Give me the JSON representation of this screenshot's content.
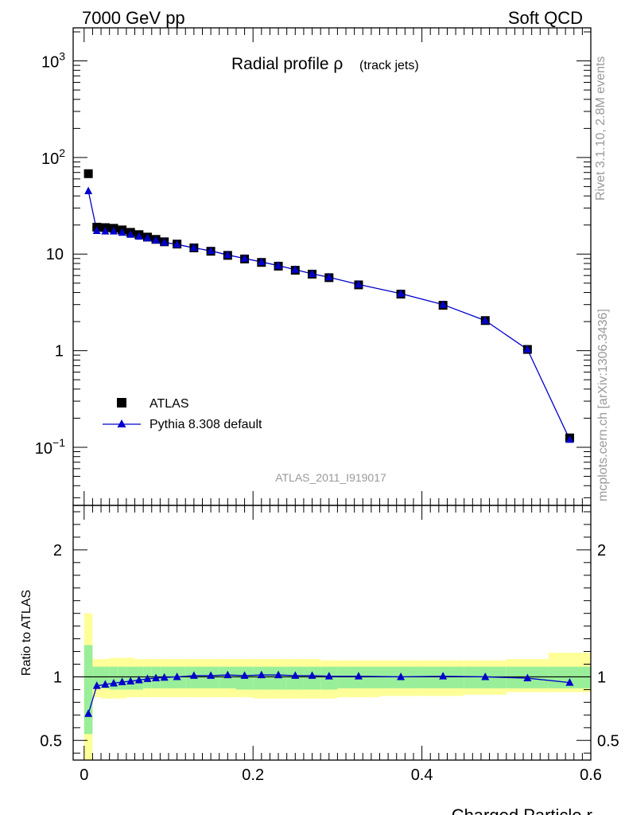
{
  "header": {
    "left": "7000 GeV pp",
    "right": "Soft QCD"
  },
  "side_text": {
    "rivet": "Rivet 3.1.10,  2.8M events",
    "source": "mcplots.cern.ch [arXiv:1306.3436]"
  },
  "plot": {
    "title": "Radial profile ρ",
    "title_small": "(track jets)",
    "analysis_id": "ATLAS_2011_I919017"
  },
  "legend": {
    "data_label": "ATLAS",
    "mc_label": "Pythia 8.308 default"
  },
  "colors": {
    "data": "#000000",
    "mc": "#0000cc",
    "band_inner": "#99ee99",
    "band_outer": "#ffff99",
    "side_text": "#999999"
  },
  "chart_data": [
    {
      "type": "scatter",
      "name": "main",
      "yscale": "log",
      "xlim": [
        -0.013,
        0.6
      ],
      "ylim": [
        0.025,
        2200
      ],
      "y_ticks": [
        {
          "value": 1000,
          "base": "10",
          "exp": "3"
        },
        {
          "value": 100,
          "base": "10",
          "exp": "2"
        },
        {
          "value": 10,
          "label": "10"
        },
        {
          "value": 1,
          "label": "1"
        },
        {
          "value": 0.1,
          "base": "10",
          "exp": "−1"
        }
      ],
      "series": [
        {
          "name": "ATLAS",
          "marker": "square",
          "x": [
            0.005,
            0.015,
            0.025,
            0.035,
            0.045,
            0.055,
            0.065,
            0.075,
            0.085,
            0.095,
            0.11,
            0.13,
            0.15,
            0.17,
            0.19,
            0.21,
            0.23,
            0.25,
            0.27,
            0.29,
            0.325,
            0.375,
            0.425,
            0.475,
            0.525,
            0.575
          ],
          "y": [
            68,
            19,
            18.8,
            18.5,
            17.8,
            16.8,
            15.9,
            15.0,
            14.2,
            13.4,
            12.7,
            11.6,
            10.7,
            9.7,
            8.9,
            8.2,
            7.5,
            6.8,
            6.2,
            5.7,
            4.8,
            3.85,
            2.95,
            2.05,
            1.03,
            0.125
          ]
        },
        {
          "name": "Pythia 8.308 default",
          "marker": "triangle",
          "x": [
            0.005,
            0.015,
            0.025,
            0.035,
            0.045,
            0.055,
            0.065,
            0.075,
            0.085,
            0.095,
            0.11,
            0.13,
            0.15,
            0.17,
            0.19,
            0.21,
            0.23,
            0.25,
            0.27,
            0.29,
            0.325,
            0.375,
            0.425,
            0.475,
            0.525,
            0.575
          ],
          "y": [
            45,
            17.4,
            17.2,
            17.2,
            16.7,
            15.9,
            15.2,
            14.6,
            13.9,
            13.2,
            12.6,
            11.6,
            10.8,
            9.8,
            9.0,
            8.3,
            7.6,
            6.9,
            6.25,
            5.75,
            4.85,
            3.9,
            3.0,
            2.05,
            1.03,
            0.12
          ]
        }
      ]
    },
    {
      "type": "scatter",
      "name": "ratio",
      "ylabel": "Ratio to ATLAS",
      "xlabel": "Charged Particle r",
      "xlim": [
        -0.013,
        0.6
      ],
      "ylim": [
        0.345,
        2.35
      ],
      "y_ticks": [
        {
          "value": 0.5,
          "label": "0.5"
        },
        {
          "value": 1,
          "label": "1"
        },
        {
          "value": 2,
          "label": "2"
        }
      ],
      "x_ticks": [
        {
          "value": 0,
          "label": "0"
        },
        {
          "value": 0.2,
          "label": "0.2"
        },
        {
          "value": 0.4,
          "label": "0.4"
        },
        {
          "value": 0.6,
          "label": "0.6"
        }
      ],
      "bands": {
        "edges": [
          0,
          0.01,
          0.02,
          0.03,
          0.04,
          0.05,
          0.06,
          0.07,
          0.08,
          0.09,
          0.1,
          0.12,
          0.14,
          0.16,
          0.18,
          0.2,
          0.22,
          0.24,
          0.26,
          0.28,
          0.3,
          0.35,
          0.4,
          0.45,
          0.5,
          0.55,
          0.6
        ],
        "inner_lo": [
          0.55,
          0.91,
          0.91,
          0.9,
          0.9,
          0.9,
          0.9,
          0.91,
          0.91,
          0.91,
          0.91,
          0.91,
          0.91,
          0.91,
          0.9,
          0.9,
          0.9,
          0.9,
          0.9,
          0.9,
          0.91,
          0.91,
          0.91,
          0.91,
          0.91,
          0.91
        ],
        "inner_hi": [
          1.25,
          1.08,
          1.08,
          1.08,
          1.08,
          1.08,
          1.08,
          1.08,
          1.08,
          1.08,
          1.08,
          1.08,
          1.08,
          1.08,
          1.08,
          1.08,
          1.08,
          1.08,
          1.08,
          1.08,
          1.08,
          1.08,
          1.08,
          1.08,
          1.08,
          1.08
        ],
        "outer_lo": [
          0.0,
          0.84,
          0.83,
          0.83,
          0.83,
          0.84,
          0.84,
          0.84,
          0.84,
          0.84,
          0.84,
          0.84,
          0.84,
          0.84,
          0.84,
          0.83,
          0.83,
          0.83,
          0.83,
          0.83,
          0.84,
          0.85,
          0.85,
          0.86,
          0.88,
          0.88
        ],
        "outer_hi": [
          1.5,
          1.14,
          1.14,
          1.15,
          1.15,
          1.15,
          1.14,
          1.14,
          1.14,
          1.14,
          1.14,
          1.14,
          1.14,
          1.14,
          1.14,
          1.14,
          1.14,
          1.14,
          1.14,
          1.13,
          1.13,
          1.13,
          1.13,
          1.13,
          1.14,
          1.19
        ]
      },
      "series": [
        {
          "name": "Pythia 8.308 default",
          "marker": "triangle",
          "x": [
            0.005,
            0.015,
            0.025,
            0.035,
            0.045,
            0.055,
            0.065,
            0.075,
            0.085,
            0.095,
            0.11,
            0.13,
            0.15,
            0.17,
            0.19,
            0.21,
            0.23,
            0.25,
            0.27,
            0.29,
            0.325,
            0.375,
            0.425,
            0.475,
            0.525,
            0.575
          ],
          "y": [
            0.71,
            0.93,
            0.94,
            0.95,
            0.96,
            0.965,
            0.975,
            0.985,
            0.99,
            0.995,
            1.0,
            1.01,
            1.01,
            1.015,
            1.01,
            1.015,
            1.015,
            1.01,
            1.01,
            1.005,
            1.005,
            1.0,
            1.005,
            1.0,
            0.99,
            0.955
          ]
        }
      ]
    }
  ]
}
